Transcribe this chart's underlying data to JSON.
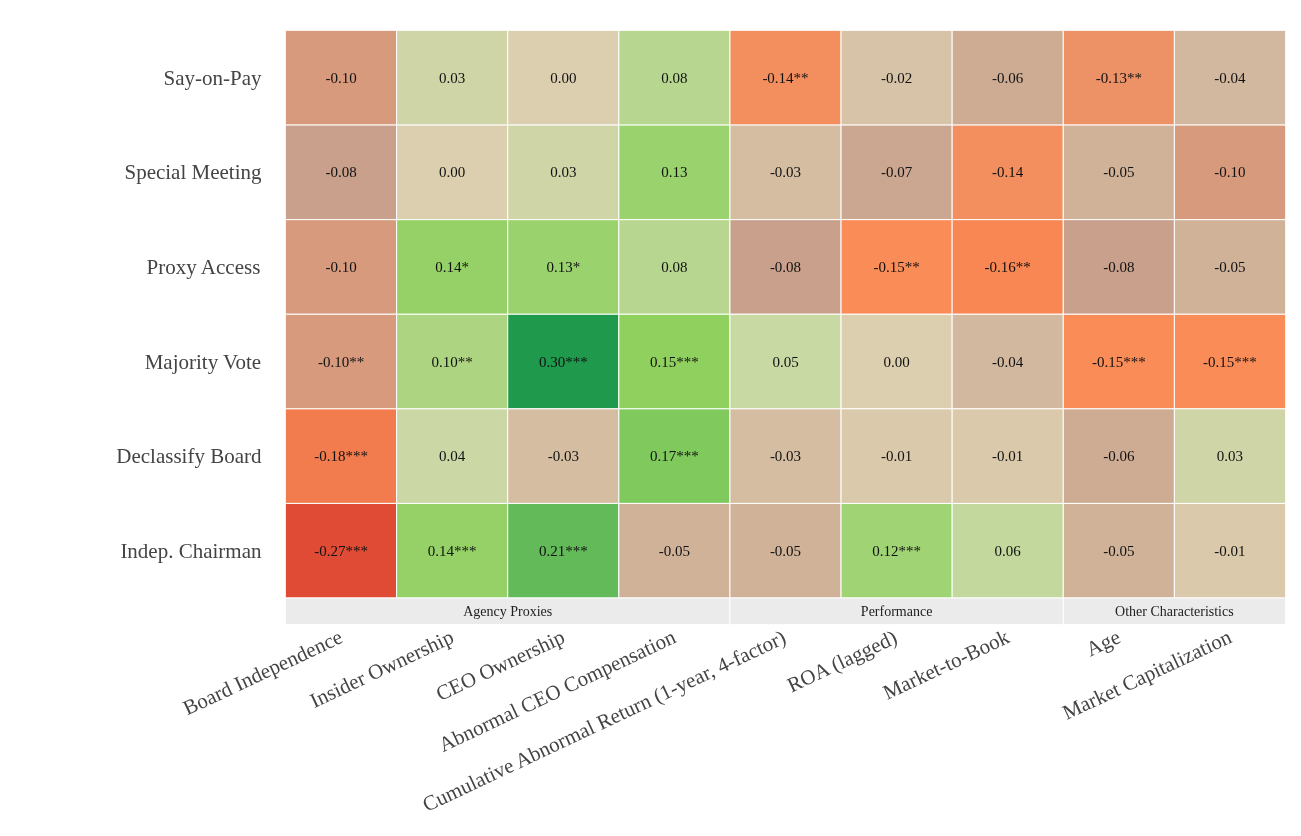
{
  "chart_data": {
    "type": "heatmap",
    "categories": [
      "Board Independence",
      "Insider Ownership",
      "CEO Ownership",
      "Abnormal CEO Compensation",
      "Cumulative Abnormal Return (1-year, 4-factor)",
      "ROA (lagged)",
      "Market-to-Book",
      "Age",
      "Market Capitalization"
    ],
    "y_categories": [
      "Say-on-Pay",
      "Special Meeting",
      "Proxy Access",
      "Majority Vote",
      "Declassify Board",
      "Indep. Chairman"
    ],
    "cells": [
      [
        -0.1,
        0.03,
        0.0,
        0.08,
        -0.14,
        -0.02,
        -0.06,
        -0.13,
        -0.04
      ],
      [
        -0.08,
        0.0,
        0.03,
        0.13,
        -0.03,
        -0.07,
        -0.14,
        -0.05,
        -0.1
      ],
      [
        -0.1,
        0.14,
        0.13,
        0.08,
        -0.08,
        -0.15,
        -0.16,
        -0.08,
        -0.05
      ],
      [
        -0.1,
        0.1,
        0.3,
        0.15,
        0.05,
        0.0,
        -0.04,
        -0.15,
        -0.15
      ],
      [
        -0.18,
        0.04,
        -0.03,
        0.17,
        -0.03,
        -0.01,
        -0.01,
        -0.06,
        0.03
      ],
      [
        -0.27,
        0.14,
        0.21,
        -0.05,
        -0.05,
        0.12,
        0.06,
        -0.05,
        -0.01
      ]
    ],
    "cell_labels": [
      [
        "-0.10",
        "0.03",
        "0.00",
        "0.08",
        "-0.14**",
        "-0.02",
        "-0.06",
        "-0.13**",
        "-0.04"
      ],
      [
        "-0.08",
        "0.00",
        "0.03",
        "0.13",
        "-0.03",
        "-0.07",
        "-0.14",
        "-0.05",
        "-0.10"
      ],
      [
        "-0.10",
        "0.14*",
        "0.13*",
        "0.08",
        "-0.08",
        "-0.15**",
        "-0.16**",
        "-0.08",
        "-0.05"
      ],
      [
        "-0.10**",
        "0.10**",
        "0.30***",
        "0.15***",
        "0.05",
        "0.00",
        "-0.04",
        "-0.15***",
        "-0.15***"
      ],
      [
        "-0.18***",
        "0.04",
        "-0.03",
        "0.17***",
        "-0.03",
        "-0.01",
        "-0.01",
        "-0.06",
        "0.03"
      ],
      [
        "-0.27***",
        "0.14***",
        "0.21***",
        "-0.05",
        "-0.05",
        "0.12***",
        "0.06",
        "-0.05",
        "-0.01"
      ]
    ],
    "annotations": [
      "Agency Proxies",
      "Performance",
      "Other Characteristics"
    ]
  }
}
